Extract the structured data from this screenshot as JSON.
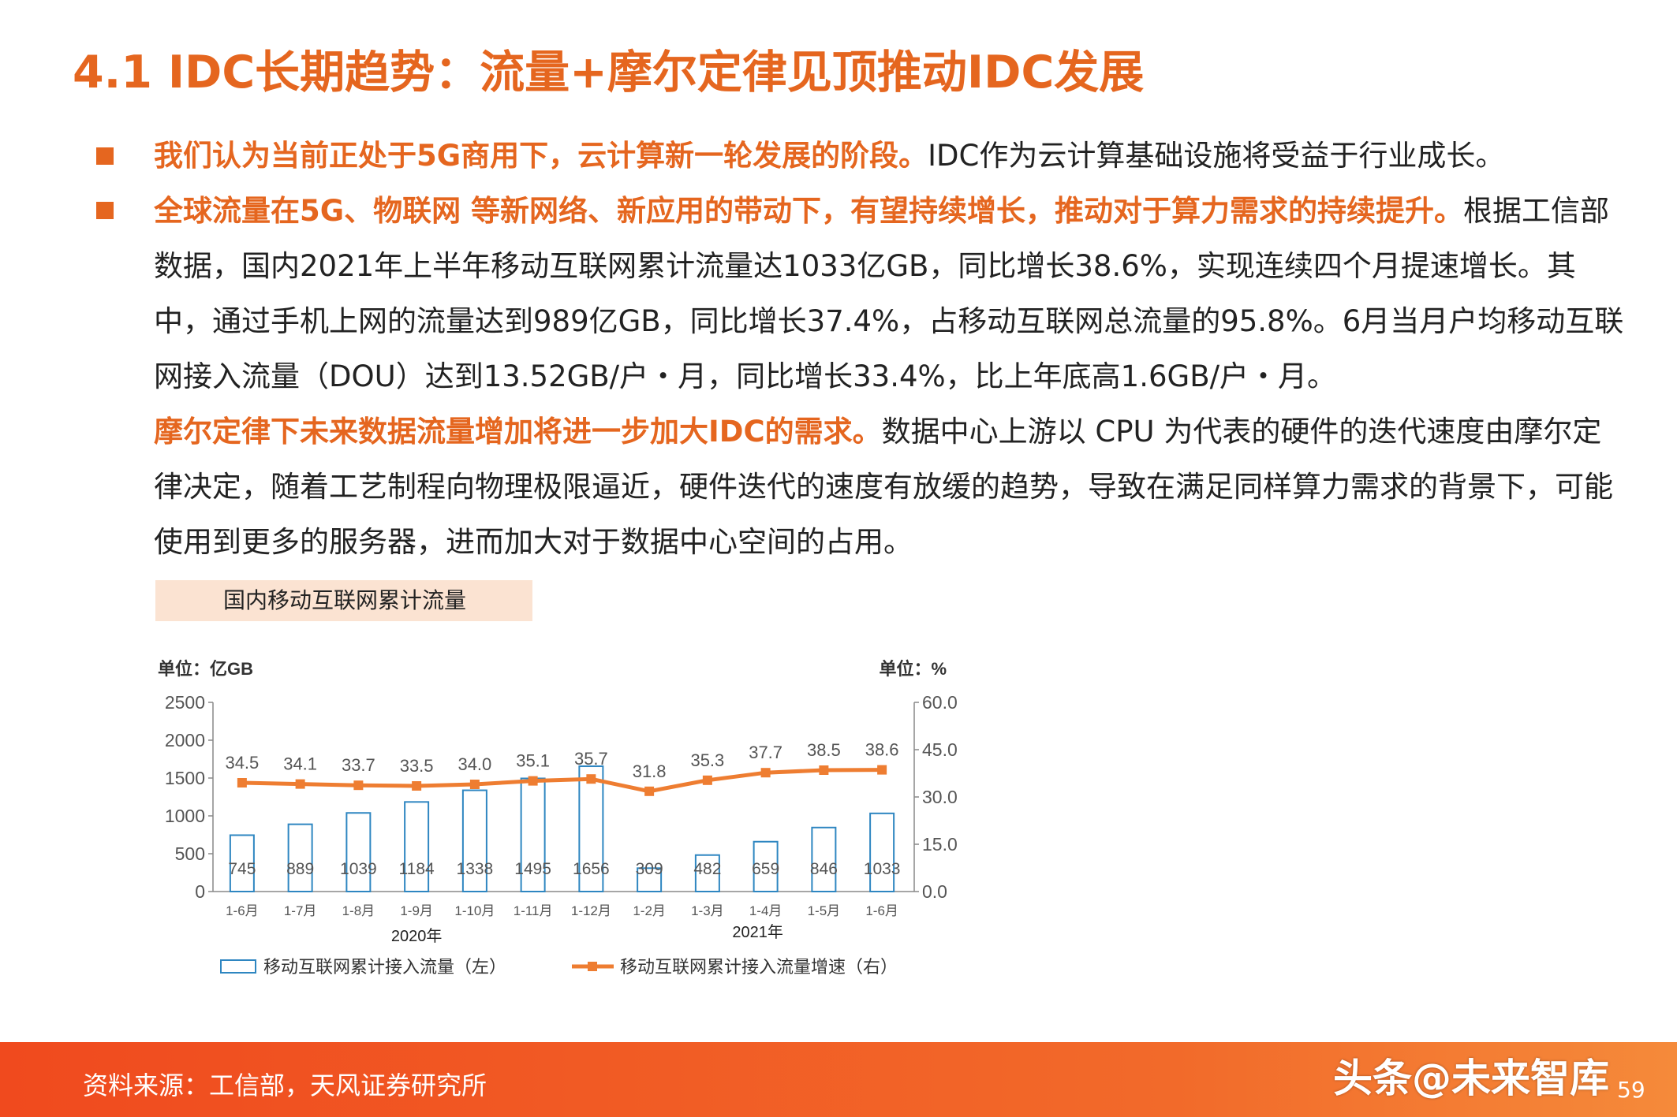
{
  "title": "4.1 IDC长期趋势：流量+摩尔定律见顶推动IDC发展",
  "paragraphs": {
    "p1_hl": "我们认为当前正处于5G商用下，云计算新一轮发展的阶段。",
    "p1_rest": "IDC作为云计算基础设施将受益于行业成长。",
    "p2_hl": "全球流量在5G、物联网 等新网络、新应用的带动下，有望持续增长，推动对于算力需求的持续提升。",
    "p2_rest": "根据工信部数据，国内2021年上半年移动互联网累计流量达1033亿GB，同比增长38.6%，实现连续四个月提速增长。其中，通过手机上网的流量达到989亿GB，同比增长37.4%，占移动互联网总流量的95.8%。6月当月户均移动互联网接入流量（DOU）达到13.52GB/户・月，同比增长33.4%，比上年底高1.6GB/户・月。",
    "p3_hl": "摩尔定律下未来数据流量增加将进一步加大IDC的需求。",
    "p3_rest": "数据中心上游以 CPU 为代表的硬件的迭代速度由摩尔定律决定，随着工艺制程向物理极限逼近，硬件迭代的速度有放缓的趋势，导致在满足同样算力需求的背景下，可能使用到更多的服务器，进而加大对于数据中心空间的占用。"
  },
  "chart_title": "国内移动互联网累计流量",
  "chart_data": {
    "type": "bar",
    "categories": [
      "1-6月",
      "1-7月",
      "1-8月",
      "1-9月",
      "1-10月",
      "1-11月",
      "1-12月",
      "1-2月",
      "1-3月",
      "1-4月",
      "1-5月",
      "1-6月"
    ],
    "year_groups": [
      "2020年",
      "2021年"
    ],
    "y_left_unit": "单位：亿GB",
    "y_right_unit": "单位：%",
    "ylim_left": [
      0,
      2500
    ],
    "yticks_left": [
      "0",
      "500",
      "1000",
      "1500",
      "2000",
      "2500"
    ],
    "ylim_right": [
      0,
      60
    ],
    "yticks_right": [
      "0.0",
      "15.0",
      "30.0",
      "45.0",
      "60.0"
    ],
    "series": [
      {
        "name": "移动互联网累计接入流量（左）",
        "type": "bar",
        "axis": "left",
        "values": [
          745,
          889,
          1039,
          1184,
          1338,
          1495,
          1656,
          309,
          482,
          659,
          846,
          1033
        ]
      },
      {
        "name": "移动互联网累计接入流量增速（右）",
        "type": "line",
        "axis": "right",
        "values": [
          34.5,
          34.1,
          33.7,
          33.5,
          34.0,
          35.1,
          35.7,
          31.8,
          35.3,
          37.7,
          38.5,
          38.6
        ]
      }
    ],
    "colors": {
      "bar": "#2e86c1",
      "line": "#ee7d31"
    }
  },
  "footer": {
    "source": "资料来源：工信部，天风证券研究所",
    "watermark": "头条@未来智库",
    "page": "59"
  }
}
